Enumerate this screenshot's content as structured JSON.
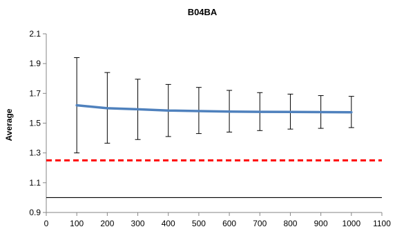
{
  "chart_data": {
    "type": "line",
    "title": "B04BA",
    "xlabel": "",
    "ylabel": "Average",
    "xlim": [
      0,
      1100
    ],
    "ylim": [
      0.9,
      2.1
    ],
    "x_ticks": [
      0,
      100,
      200,
      300,
      400,
      500,
      600,
      700,
      800,
      900,
      1000,
      1100
    ],
    "y_ticks": [
      0.9,
      1.1,
      1.3,
      1.5,
      1.7,
      1.9,
      2.1
    ],
    "y_tick_labels": [
      "0.9",
      "1.1",
      "1.3",
      "1.5",
      "1.7",
      "1.9",
      "2.1"
    ],
    "grid": false,
    "legend": "none",
    "series": [
      {
        "x": [
          100,
          200,
          300,
          400,
          500,
          600,
          700,
          800,
          900,
          1000
        ],
        "values": [
          1.62,
          1.6,
          1.593,
          1.585,
          1.581,
          1.578,
          1.576,
          1.575,
          1.574,
          1.573
        ],
        "error_low": [
          1.3,
          1.365,
          1.39,
          1.41,
          1.43,
          1.44,
          1.45,
          1.46,
          1.465,
          1.47
        ],
        "error_high": [
          1.94,
          1.84,
          1.795,
          1.76,
          1.74,
          1.72,
          1.705,
          1.695,
          1.685,
          1.68
        ],
        "color": "#4F81BD"
      }
    ],
    "reference_lines": [
      {
        "y": 1.25,
        "style": "dashed",
        "color": "#FF0000"
      },
      {
        "y": 1.0,
        "style": "solid",
        "color": "#000000"
      }
    ]
  }
}
